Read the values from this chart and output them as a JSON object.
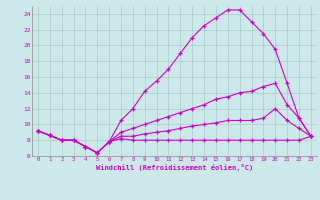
{
  "xlabel": "Windchill (Refroidissement éolien,°C)",
  "background_color": "#cce8e8",
  "line_color": "#cc00cc",
  "grid_color": "#aacccc",
  "xlim": [
    -0.5,
    23.5
  ],
  "ylim": [
    6,
    25
  ],
  "yticks": [
    6,
    8,
    10,
    12,
    14,
    16,
    18,
    20,
    22,
    24
  ],
  "xticks": [
    0,
    1,
    2,
    3,
    4,
    5,
    6,
    7,
    8,
    9,
    10,
    11,
    12,
    13,
    14,
    15,
    16,
    17,
    18,
    19,
    20,
    21,
    22,
    23
  ],
  "series": [
    [
      9.2,
      8.6,
      8.0,
      8.0,
      7.2,
      6.4,
      7.8,
      10.5,
      12.0,
      14.2,
      15.5,
      17.0,
      19.0,
      21.0,
      22.5,
      23.5,
      24.5,
      24.5,
      23.0,
      21.5,
      19.5,
      15.2,
      10.8,
      8.5
    ],
    [
      9.2,
      8.6,
      8.0,
      8.0,
      7.2,
      6.4,
      7.8,
      9.0,
      9.5,
      10.0,
      10.5,
      11.0,
      11.5,
      12.0,
      12.5,
      13.2,
      13.5,
      14.0,
      14.2,
      14.8,
      15.2,
      12.5,
      10.8,
      8.5
    ],
    [
      9.2,
      8.6,
      8.0,
      8.0,
      7.2,
      6.4,
      7.8,
      8.5,
      8.5,
      8.8,
      9.0,
      9.2,
      9.5,
      9.8,
      10.0,
      10.2,
      10.5,
      10.5,
      10.5,
      10.8,
      12.0,
      10.5,
      9.5,
      8.5
    ],
    [
      9.2,
      8.6,
      8.0,
      8.0,
      7.2,
      6.4,
      7.8,
      8.2,
      8.0,
      8.0,
      8.0,
      8.0,
      8.0,
      8.0,
      8.0,
      8.0,
      8.0,
      8.0,
      8.0,
      8.0,
      8.0,
      8.0,
      8.0,
      8.5
    ]
  ]
}
